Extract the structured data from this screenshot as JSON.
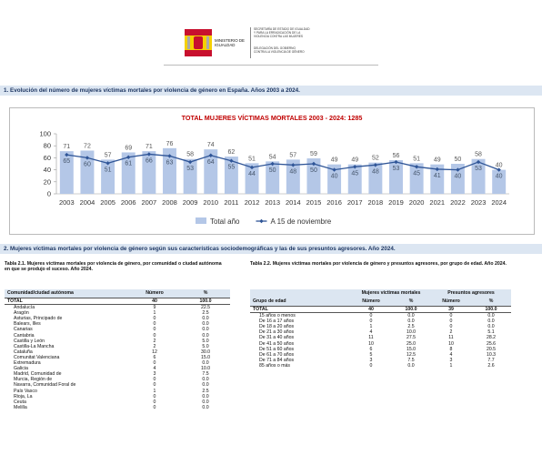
{
  "header": {
    "ministry": "MINISTERIO DE IGUALDAD",
    "secretariat": "SECRETARÍA DE ESTADO DE IGUALDAD Y PARA LA ERRADICACIÓN DE LA VIOLENCIA CONTRA LAS MUJERES",
    "delegation": "DELEGACIÓN DEL GOBIERNO CONTRA LA VIOLENCIA DE GÉNERO"
  },
  "section1": {
    "title": "1. Evolución del número de mujeres víctimas mortales por violencia de género en España. Años 2003 a 2024."
  },
  "chart_data": {
    "type": "bar",
    "title": "TOTAL MUJERES VÍCTIMAS MORTALES 2003 - 2024: 1285",
    "categories": [
      "2003",
      "2004",
      "2005",
      "2006",
      "2007",
      "2008",
      "2009",
      "2010",
      "2011",
      "2012",
      "2013",
      "2014",
      "2015",
      "2016",
      "2017",
      "2018",
      "2019",
      "2020",
      "2021",
      "2022",
      "2023",
      "2024"
    ],
    "series": [
      {
        "name": "Total año",
        "type": "bar",
        "color": "#b4c7e7",
        "values": [
          71,
          72,
          57,
          69,
          71,
          76,
          58,
          74,
          62,
          51,
          54,
          57,
          59,
          49,
          49,
          52,
          56,
          51,
          49,
          50,
          58,
          40
        ]
      },
      {
        "name": "A 15 de noviembre",
        "type": "line",
        "color": "#2f5597",
        "values": [
          65,
          60,
          51,
          61,
          66,
          63,
          53,
          64,
          55,
          44,
          50,
          48,
          50,
          40,
          45,
          48,
          53,
          45,
          41,
          40,
          53,
          40
        ]
      }
    ],
    "ylim": [
      0,
      100
    ],
    "yticks": [
      0,
      20,
      40,
      60,
      80,
      100
    ],
    "grid": false,
    "legend": "bottom"
  },
  "section2": {
    "title": "2. Mujeres víctimas mortales por violencia de género según sus características sociodemográficas y las de sus presuntos agresores. Año 2024."
  },
  "table1": {
    "caption": "Tabla 2.1. Mujeres víctimas mortales por violencia de género, por comunidad o ciudad autónoma en que se produjo el suceso. Año 2024.",
    "columns": [
      "Comunidad/ciudad autónoma",
      "Número",
      "%"
    ],
    "total": [
      "TOTAL",
      "40",
      "100.0"
    ],
    "rows": [
      [
        "Andalucía",
        "9",
        "22.5"
      ],
      [
        "Aragón",
        "1",
        "2.5"
      ],
      [
        "Asturias, Principado de",
        "0",
        "0.0"
      ],
      [
        "Balears, Illes",
        "0",
        "0.0"
      ],
      [
        "Canarias",
        "0",
        "0.0"
      ],
      [
        "Cantabria",
        "0",
        "0.0"
      ],
      [
        "Castilla y León",
        "2",
        "5.0"
      ],
      [
        "Castilla-La Mancha",
        "2",
        "5.0"
      ],
      [
        "Cataluña",
        "12",
        "30.0"
      ],
      [
        "Comunitat Valenciana",
        "6",
        "15.0"
      ],
      [
        "Extremadura",
        "0",
        "0.0"
      ],
      [
        "Galicia",
        "4",
        "10.0"
      ],
      [
        "Madrid, Comunidad de",
        "3",
        "7.5"
      ],
      [
        "Murcia, Región de",
        "0",
        "0.0"
      ],
      [
        "Navarra, Comunidad Foral de",
        "0",
        "0.0"
      ],
      [
        "País Vasco",
        "1",
        "2.5"
      ],
      [
        "Rioja, La",
        "0",
        "0.0"
      ],
      [
        "Ceuta",
        "0",
        "0.0"
      ],
      [
        "Melilla",
        "0",
        "0.0"
      ]
    ]
  },
  "table2": {
    "caption": "Tabla 2.2. Mujeres víctimas mortales por violencia de género y presuntos agresores, por grupo de edad. Año 2024.",
    "groups": [
      "Mujeres víctimas mortales",
      "Presuntos agresores"
    ],
    "columns": [
      "Grupo de edad",
      "Número",
      "%",
      "Número",
      "%"
    ],
    "total": [
      "TOTAL",
      "40",
      "100.0",
      "39",
      "100.0"
    ],
    "rows": [
      [
        "15 años o menos",
        "0",
        "0.0",
        "0",
        "0.0"
      ],
      [
        "De 16 a 17 años",
        "0",
        "0.0",
        "0",
        "0.0"
      ],
      [
        "De 18 a 20 años",
        "1",
        "2.5",
        "0",
        "0.0"
      ],
      [
        "De 21 a 30 años",
        "4",
        "10.0",
        "2",
        "5.1"
      ],
      [
        "De 31 a 40 años",
        "11",
        "27.5",
        "11",
        "28.2"
      ],
      [
        "De 41 a 50 años",
        "10",
        "25.0",
        "10",
        "25.6"
      ],
      [
        "De 51 a 60 años",
        "6",
        "15.0",
        "8",
        "20.5"
      ],
      [
        "De 61 a 70 años",
        "5",
        "12.5",
        "4",
        "10.3"
      ],
      [
        "De 71 a 84 años",
        "3",
        "7.5",
        "3",
        "7.7"
      ],
      [
        "85 años o más",
        "0",
        "0.0",
        "1",
        "2.6"
      ]
    ]
  }
}
